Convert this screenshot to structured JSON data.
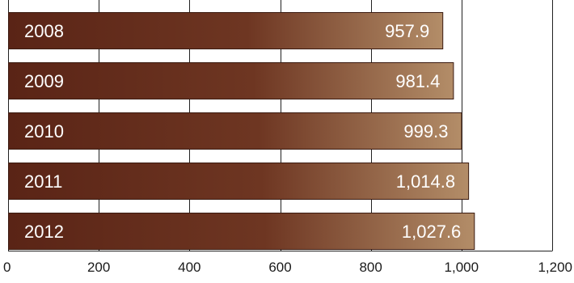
{
  "chart_data": {
    "type": "bar",
    "orientation": "horizontal",
    "categories": [
      "2008",
      "2009",
      "2010",
      "2011",
      "2012"
    ],
    "values": [
      957.9,
      981.4,
      999.3,
      1014.8,
      1027.6
    ],
    "value_labels": [
      "957.9",
      "981.4",
      "999.3",
      "1,014.8",
      "1,027.6"
    ],
    "xlim": [
      0,
      1200
    ],
    "x_ticks": [
      0,
      200,
      400,
      600,
      800,
      1000,
      1200
    ],
    "x_tick_labels": [
      "0",
      "200",
      "400",
      "600",
      "800",
      "1,000",
      "1,200"
    ],
    "grid": true,
    "title": "",
    "xlabel": "",
    "ylabel": "",
    "colors": {
      "bar_dark": "#5a2416",
      "bar_mid": "#6e3622",
      "bar_light": "#b38d68",
      "bar_stroke": "#3a1a10"
    }
  }
}
